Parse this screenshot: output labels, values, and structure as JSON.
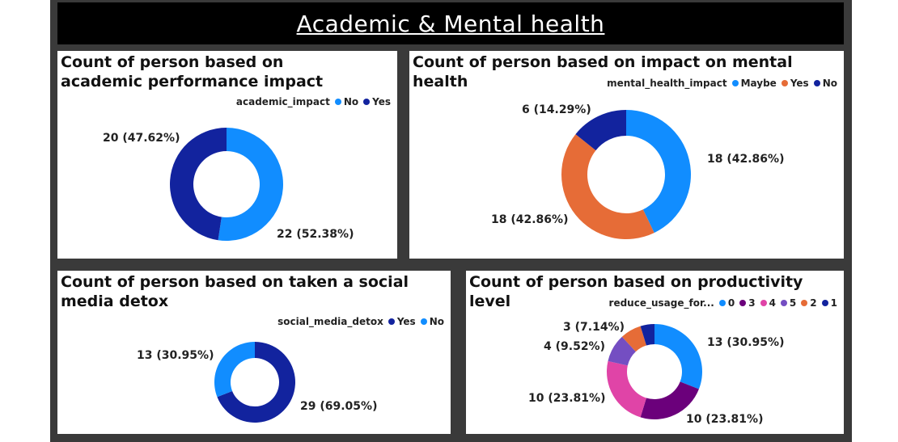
{
  "dashboard_title": "Academic & Mental health",
  "colors": {
    "light_blue": "#118DFF",
    "dark_blue": "#12239E",
    "orange": "#E66C37",
    "purple": "#6B007B",
    "pink": "#E044A7",
    "violet": "#744EC2"
  },
  "chart_data": [
    {
      "type": "pie",
      "title": "Count of person based on academic performance impact",
      "legend_title": "academic_impact",
      "legend_position": "top-right",
      "slices": [
        {
          "name": "No",
          "value": 22,
          "label": "22 (52.38%)",
          "color": "#118DFF"
        },
        {
          "name": "Yes",
          "value": 20,
          "label": "20 (47.62%)",
          "color": "#12239E"
        }
      ]
    },
    {
      "type": "pie",
      "title": "Count of person based on impact on mental health",
      "legend_title": "mental_health_impact",
      "legend_position": "top-right",
      "slices": [
        {
          "name": "Maybe",
          "value": 18,
          "label": "18 (42.86%)",
          "color": "#118DFF"
        },
        {
          "name": "Yes",
          "value": 18,
          "label": "18 (42.86%)",
          "color": "#E66C37"
        },
        {
          "name": "No",
          "value": 6,
          "label": "6 (14.29%)",
          "color": "#12239E"
        }
      ]
    },
    {
      "type": "pie",
      "title": "Count of person based on taken a social media detox",
      "legend_title": "social_media_detox",
      "legend_position": "top-right",
      "slices": [
        {
          "name": "Yes",
          "value": 29,
          "label": "29 (69.05%)",
          "color": "#12239E"
        },
        {
          "name": "No",
          "value": 13,
          "label": "13 (30.95%)",
          "color": "#118DFF"
        }
      ]
    },
    {
      "type": "pie",
      "title": "Count of person based on productivity level",
      "legend_title": "reduce_usage_for...",
      "legend_position": "top-right",
      "slices": [
        {
          "name": "0",
          "value": 13,
          "label": "13 (30.95%)",
          "color": "#118DFF"
        },
        {
          "name": "3",
          "value": 10,
          "label": "10 (23.81%)",
          "color": "#6B007B"
        },
        {
          "name": "4",
          "value": 10,
          "label": "10 (23.81%)",
          "color": "#E044A7"
        },
        {
          "name": "5",
          "value": 4,
          "label": "4 (9.52%)",
          "color": "#744EC2"
        },
        {
          "name": "2",
          "value": 3,
          "label": "3 (7.14%)",
          "color": "#E66C37"
        },
        {
          "name": "1",
          "value": 2,
          "label": "",
          "color": "#12239E"
        }
      ]
    }
  ]
}
